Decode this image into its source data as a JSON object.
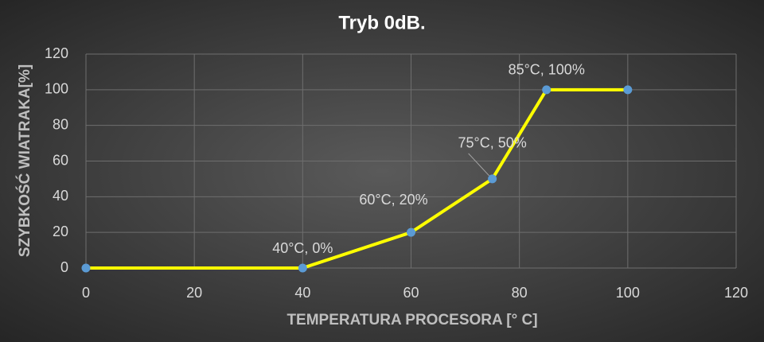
{
  "chart_data": {
    "type": "line",
    "title": "Tryb 0dB.",
    "x_label": "TEMPERATURA PROCESORA [° C]",
    "y_label": "SZYBKOŚĆ WIATRAKA[%]",
    "x": [
      0,
      40,
      60,
      75,
      85,
      100
    ],
    "series": [
      {
        "name": "Tryb 0dB.",
        "color": "#ffff00",
        "marker_color": "#5b9bd5",
        "values": [
          0,
          0,
          20,
          50,
          100,
          100
        ],
        "value_labels": [
          null,
          "40°C, 0%",
          "60°C, 20%",
          "75°C, 50%",
          "85°C, 100%",
          null
        ]
      }
    ],
    "xlim": [
      0,
      120
    ],
    "xticks": [
      0,
      20,
      40,
      60,
      80,
      100,
      120
    ],
    "ylim": [
      0,
      120
    ],
    "yticks": [
      0,
      20,
      40,
      60,
      80,
      100,
      120
    ],
    "grid": true
  }
}
